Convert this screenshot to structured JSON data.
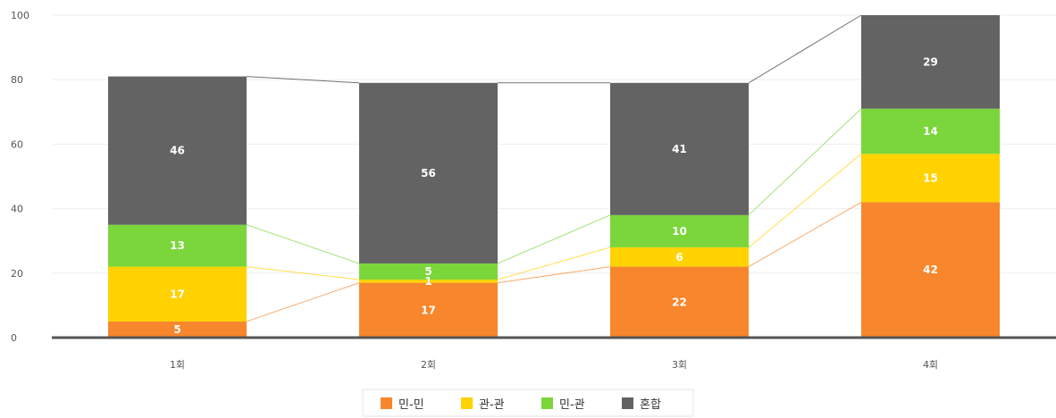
{
  "chart_data": {
    "type": "bar",
    "stacked": true,
    "categories": [
      "1회",
      "2회",
      "3회",
      "4회"
    ],
    "series": [
      {
        "name": "민-민",
        "color": "#f7862c",
        "values": [
          5,
          17,
          22,
          42
        ]
      },
      {
        "name": "관-관",
        "color": "#ffd200",
        "values": [
          17,
          1,
          6,
          15
        ]
      },
      {
        "name": "민-관",
        "color": "#7ad63a",
        "values": [
          13,
          5,
          10,
          14
        ]
      },
      {
        "name": "혼합",
        "color": "#636363",
        "values": [
          46,
          56,
          41,
          29
        ]
      }
    ],
    "connector_lines": true,
    "ylim": [
      0,
      100
    ],
    "yticks": [
      0,
      20,
      40,
      60,
      80,
      100
    ],
    "grid": true,
    "legend": "bottom-center"
  }
}
